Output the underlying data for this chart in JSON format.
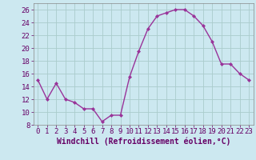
{
  "x": [
    0,
    1,
    2,
    3,
    4,
    5,
    6,
    7,
    8,
    9,
    10,
    11,
    12,
    13,
    14,
    15,
    16,
    17,
    18,
    19,
    20,
    21,
    22,
    23
  ],
  "y": [
    15,
    12,
    14.5,
    12,
    11.5,
    10.5,
    10.5,
    8.5,
    9.5,
    9.5,
    15.5,
    19.5,
    23,
    25,
    25.5,
    26,
    26,
    25,
    23.5,
    21,
    17.5,
    17.5,
    16,
    15
  ],
  "line_color": "#993399",
  "marker": "D",
  "marker_size": 2,
  "bg_color": "#cce8f0",
  "grid_color": "#aacccc",
  "xlabel": "Windchill (Refroidissement éolien,°C)",
  "xlabel_fontsize": 7,
  "tick_fontsize": 6.5,
  "ylim": [
    8,
    27
  ],
  "xlim": [
    -0.5,
    23.5
  ],
  "yticks": [
    8,
    10,
    12,
    14,
    16,
    18,
    20,
    22,
    24,
    26
  ],
  "xticks": [
    0,
    1,
    2,
    3,
    4,
    5,
    6,
    7,
    8,
    9,
    10,
    11,
    12,
    13,
    14,
    15,
    16,
    17,
    18,
    19,
    20,
    21,
    22,
    23
  ]
}
